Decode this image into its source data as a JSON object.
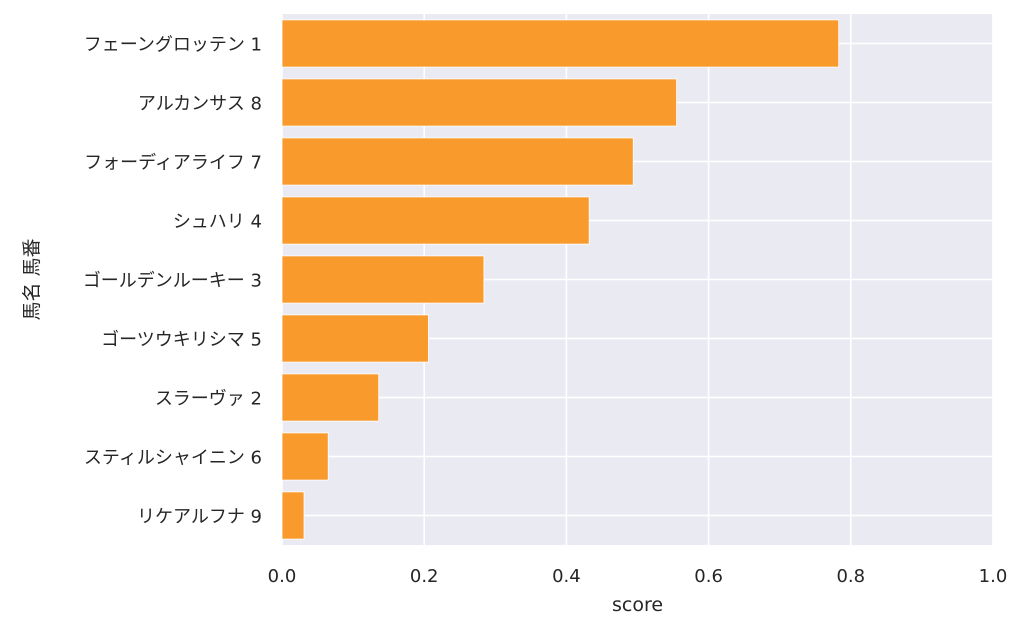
{
  "chart_data": {
    "type": "bar",
    "orientation": "horizontal",
    "categories": [
      "フェーングロッテン 1",
      "アルカンサス 8",
      "フォーディアライフ 7",
      "シュハリ 4",
      "ゴールデンルーキー 3",
      "ゴーツウキリシマ 5",
      "スラーヴァ 2",
      "スティルシャイニン 6",
      "リケアルフナ 9"
    ],
    "values": [
      0.783,
      0.555,
      0.494,
      0.432,
      0.284,
      0.206,
      0.136,
      0.065,
      0.031
    ],
    "xlabel": "score",
    "ylabel": "馬名 馬番",
    "xlim": [
      0,
      1
    ],
    "xticks": [
      "0.0",
      "0.2",
      "0.4",
      "0.6",
      "0.8",
      "1.0"
    ],
    "grid": true,
    "bar_color": "#f99b2c",
    "background_color": "#eaeaf2",
    "grid_color": "#ffffff"
  }
}
